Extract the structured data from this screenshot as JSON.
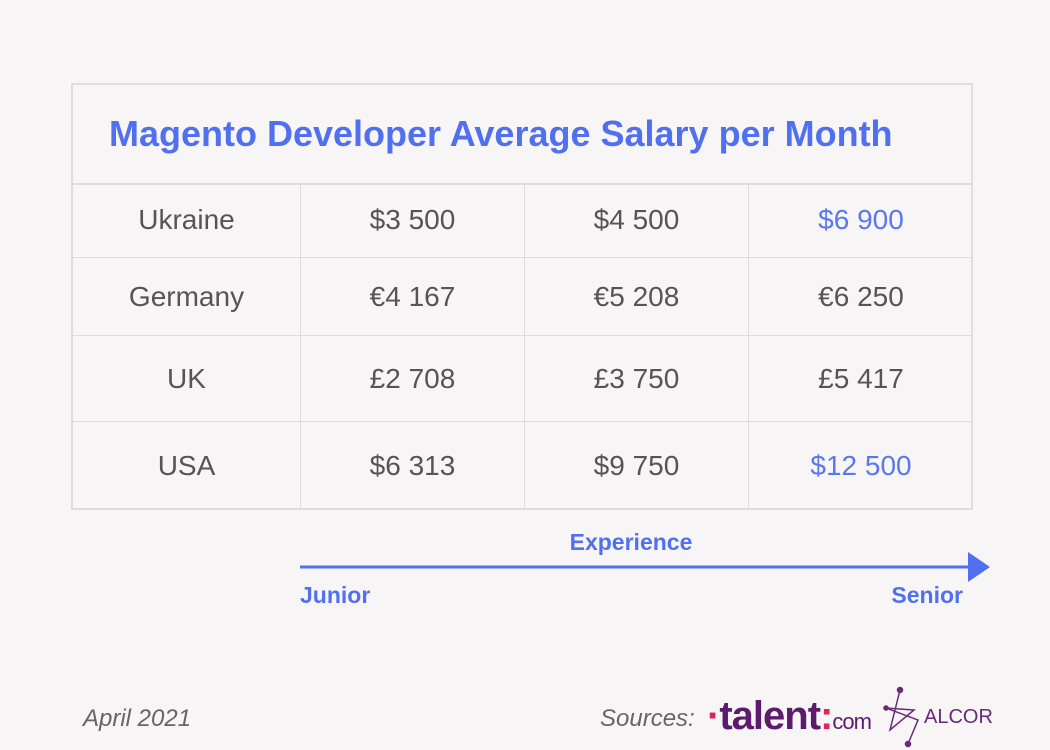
{
  "title": "Magento Developer Average Salary per Month",
  "table": {
    "rows": [
      [
        "Ukraine",
        "$3 500",
        "$4 500",
        "$6 900"
      ],
      [
        "Germany",
        "€4 167",
        "€5 208",
        "€6 250"
      ],
      [
        "UK",
        "£2 708",
        "£3 750",
        "£5 417"
      ],
      [
        "USA",
        "$6 313",
        "$9 750",
        "$12 500"
      ]
    ]
  },
  "axis": {
    "label": "Experience",
    "start": "Junior",
    "end": "Senior"
  },
  "footer": {
    "date": "April 2021",
    "sources_label": "Sources:",
    "logos": {
      "talent": "talent",
      "talent_suffix": "com",
      "alcor": "ALCOR"
    }
  }
}
